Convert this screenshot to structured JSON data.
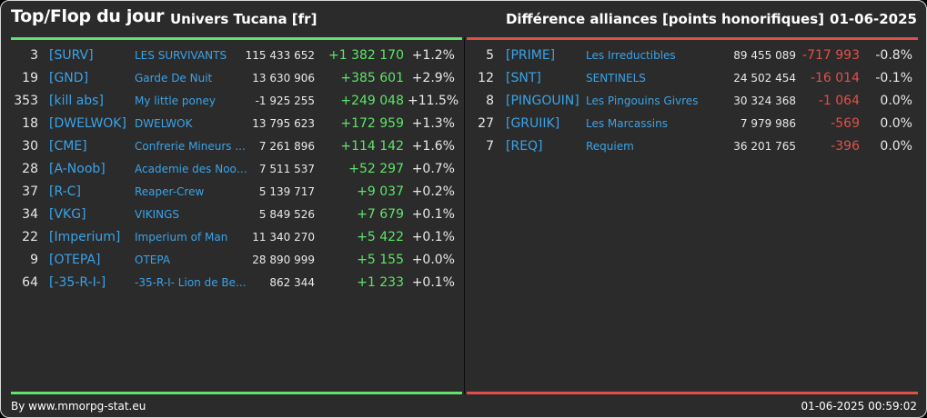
{
  "header": {
    "title": "Top/Flop du jour",
    "subtitle": "Univers Tucana [fr]",
    "category": "Différence alliances [points honorifiques]",
    "date": "01-06-2025"
  },
  "colors": {
    "accent_link": "#3aa3e8",
    "positive": "#5fe36a",
    "negative": "#e0504b",
    "background": "#2b2b2b"
  },
  "top": [
    {
      "rank": "3",
      "tag": "[SURV]",
      "name": "LES SURVIVANTS",
      "points": "115 433 652",
      "diff": "+1 382 170",
      "pct": "+1.2%"
    },
    {
      "rank": "19",
      "tag": "[GND]",
      "name": "Garde De Nuit",
      "points": "13 630 906",
      "diff": "+385 601",
      "pct": "+2.9%"
    },
    {
      "rank": "353",
      "tag": "[kill abs]",
      "name": "My little poney",
      "points": "-1 925 255",
      "diff": "+249 048",
      "pct": "+11.5%"
    },
    {
      "rank": "18",
      "tag": "[DWELWOK]",
      "name": "DWELWOK",
      "points": "13 795 623",
      "diff": "+172 959",
      "pct": "+1.3%"
    },
    {
      "rank": "30",
      "tag": "[CME]",
      "name": "Confrerie Mineurs ...",
      "points": "7 261 896",
      "diff": "+114 142",
      "pct": "+1.6%"
    },
    {
      "rank": "28",
      "tag": "[A-Noob]",
      "name": "Academie des Noob...",
      "points": "7 511 537",
      "diff": "+52 297",
      "pct": "+0.7%"
    },
    {
      "rank": "37",
      "tag": "[R-C]",
      "name": "Reaper-Crew",
      "points": "5 139 717",
      "diff": "+9 037",
      "pct": "+0.2%"
    },
    {
      "rank": "34",
      "tag": "[VKG]",
      "name": "VIKINGS",
      "points": "5 849 526",
      "diff": "+7 679",
      "pct": "+0.1%"
    },
    {
      "rank": "22",
      "tag": "[Imperium]",
      "name": "Imperium of Man",
      "points": "11 340 270",
      "diff": "+5 422",
      "pct": "+0.1%"
    },
    {
      "rank": "9",
      "tag": "[OTEPA]",
      "name": "OTEPA",
      "points": "28 890 999",
      "diff": "+5 155",
      "pct": "+0.0%"
    },
    {
      "rank": "64",
      "tag": "[-35-R-I-]",
      "name": "-35-R-I- Lion de Be...",
      "points": "862 344",
      "diff": "+1 233",
      "pct": "+0.1%"
    }
  ],
  "flop": [
    {
      "rank": "5",
      "tag": "[PRIME]",
      "name": "Les Irreductibles",
      "points": "89 455 089",
      "diff": "-717 993",
      "pct": "-0.8%"
    },
    {
      "rank": "12",
      "tag": "[SNT]",
      "name": "SENTINELS",
      "points": "24 502 454",
      "diff": "-16 014",
      "pct": "-0.1%"
    },
    {
      "rank": "8",
      "tag": "[PINGOUIN]",
      "name": "Les Pingouins Givres",
      "points": "30 324 368",
      "diff": "-1 064",
      "pct": "0.0%"
    },
    {
      "rank": "27",
      "tag": "[GRUIIK]",
      "name": "Les Marcassins",
      "points": "7 979 986",
      "diff": "-569",
      "pct": "0.0%"
    },
    {
      "rank": "7",
      "tag": "[REQ]",
      "name": "Requiem",
      "points": "36 201 765",
      "diff": "-396",
      "pct": "0.0%"
    }
  ],
  "footer": {
    "source": "By www.mmorpg-stat.eu",
    "timestamp": "01-06-2025 00:59:02"
  }
}
